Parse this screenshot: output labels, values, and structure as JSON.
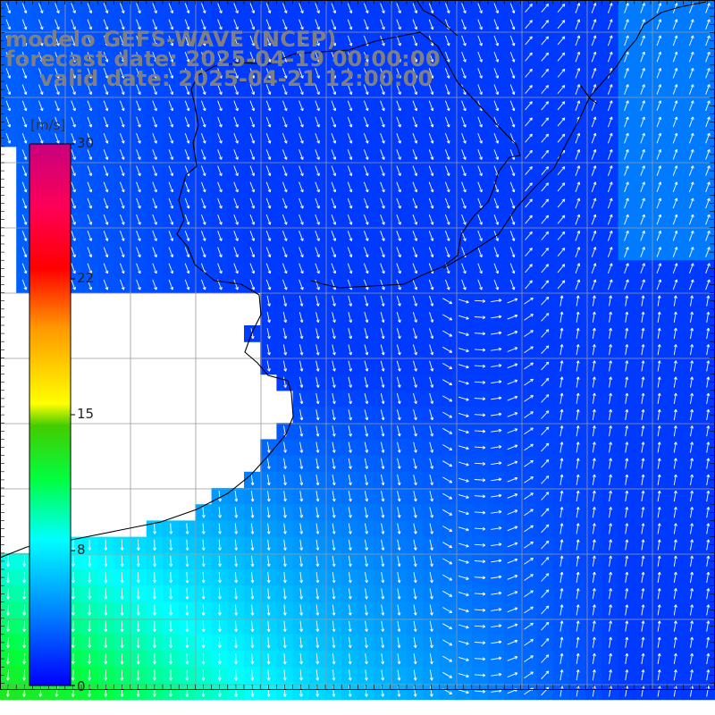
{
  "title": {
    "model": "modelo GEFS-WAVE (NCEP)",
    "forecast": "forecast date: 2025-04-19 00:00:00",
    "valid": "valid date: 2025-04-21 12:00:00"
  },
  "colorbar": {
    "unit": "[m/s]",
    "ticks": [
      "30",
      "22",
      "15",
      "8",
      "0"
    ],
    "tick_values": [
      30,
      22,
      15,
      8,
      0
    ],
    "range": [
      0,
      30
    ],
    "colors": [
      "#0000ff",
      "#00aaff",
      "#00ffff",
      "#00ff00",
      "#ffff00",
      "#ff8000",
      "#ff0000",
      "#cc0077"
    ]
  },
  "map": {
    "variable": "wind speed and direction",
    "land_color": "#ffffff",
    "coastline_color": "#000000",
    "grid_color": "#999999",
    "arrow_color": "#ffffff"
  }
}
